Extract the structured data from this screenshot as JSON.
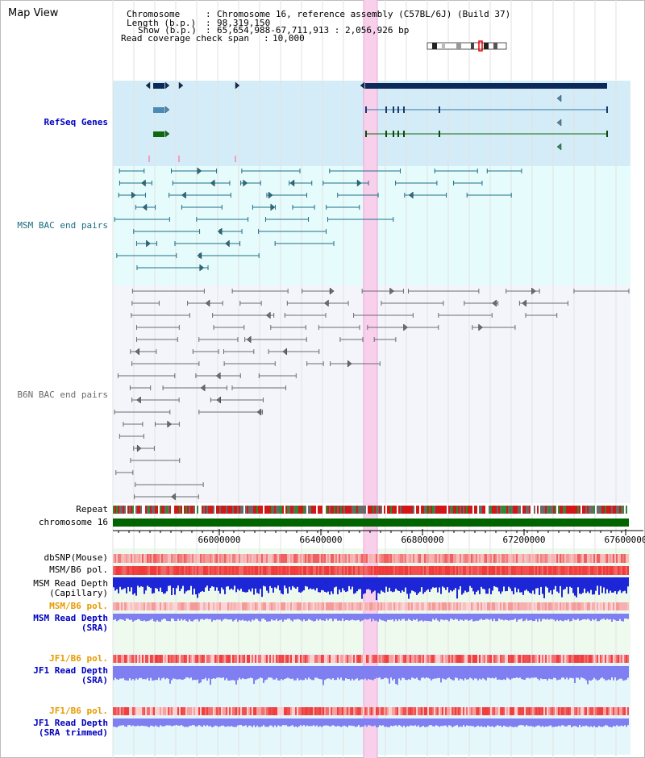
{
  "window": {
    "title": "Map View"
  },
  "header": {
    "chromosome_key": "Chromosome",
    "chromosome_value": "Chromosome 16, reference assembly (C57BL/6J) (Build 37)",
    "length_key": "Length (b.p.)",
    "length_value": "98,319,150",
    "show_key": "Show (b.p.)",
    "show_value": "65,654,988-67,711,913 : 2,056,926 bp",
    "coverage_key": "Read coverage check span",
    "coverage_value": "10,000"
  },
  "tracks": {
    "refseq": "RefSeq Genes",
    "msm_bac": "MSM BAC end pairs",
    "b6n_bac": "B6N BAC end pairs",
    "repeat": "Repeat",
    "chromosome": "chromosome 16",
    "dbsnp": "dbSNP(Mouse)",
    "msm_b6_pol": "MSM/B6 pol.",
    "msm_read_depth_cap_1": "MSM Read Depth",
    "msm_read_depth_cap_2": "(Capillary)",
    "msm_b6_pol_2": "MSM/B6 pol.",
    "msm_read_depth_sra_1": "MSM Read Depth",
    "msm_read_depth_sra_2": "(SRA)",
    "jf1_b6_pol": "JF1/B6 pol.",
    "jf1_read_depth_sra_1": "JF1 Read Depth",
    "jf1_read_depth_sra_2": "(SRA)",
    "jf1_b6_pol_2": "JF1/B6 pol.",
    "jf1_read_depth_trim_1": "JF1 Read Depth",
    "jf1_read_depth_trim_2": "(SRA trimmed)"
  },
  "axis": {
    "ticks": [
      "66000000",
      "66400000",
      "66800000",
      "67200000",
      "67600000"
    ]
  },
  "colors": {
    "refseq_bg": "#d4ecf7",
    "msm_bg": "#e6fbfb",
    "b6n_bg": "#f3f5fb",
    "highlight": "#f8d0ec",
    "msm_feature": "#1f6f88",
    "b6n_feature": "#6c6c6c",
    "gene_navy": "#0b2a5a",
    "gene_steel": "#4a8ab5",
    "gene_green": "#0c6a0c",
    "chromosome_bar": "#006400",
    "depth_blue": "#1c26d6",
    "sra_blue": "#7f7ff2",
    "pol_red": "#f05050"
  }
}
